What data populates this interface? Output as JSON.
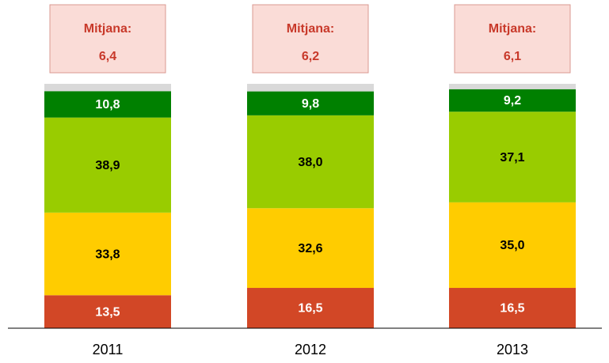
{
  "chart_data": {
    "type": "stacked_bar",
    "categories": [
      "2011",
      "2012",
      "2013"
    ],
    "ylim": [
      0,
      100
    ],
    "series": [
      {
        "color": "#d24726",
        "label_color": "#ffffff",
        "values": [
          13.5,
          16.5,
          16.5
        ],
        "value_labels": [
          "13,5",
          "16,5",
          "16,5"
        ]
      },
      {
        "color": "#ffcc00",
        "label_color": "#000000",
        "values": [
          33.8,
          32.6,
          35.0
        ],
        "value_labels": [
          "33,8",
          "32,6",
          "35,0"
        ]
      },
      {
        "color": "#99cc00",
        "label_color": "#000000",
        "values": [
          38.9,
          38.0,
          37.1
        ],
        "value_labels": [
          "38,9",
          "38,0",
          "37,1"
        ]
      },
      {
        "color": "#008000",
        "label_color": "#ffffff",
        "values": [
          10.8,
          9.8,
          9.2
        ],
        "value_labels": [
          "10,8",
          "9,8",
          "9,2"
        ]
      },
      {
        "color": "#d9d9d9",
        "values": [
          3.0,
          3.1,
          2.2
        ]
      }
    ],
    "annotations": [
      {
        "text": "Mitjana:",
        "value": "6,4"
      },
      {
        "text": "Mitjana:",
        "value": "6,2"
      },
      {
        "text": "Mitjana:",
        "value": "6,1"
      }
    ]
  }
}
